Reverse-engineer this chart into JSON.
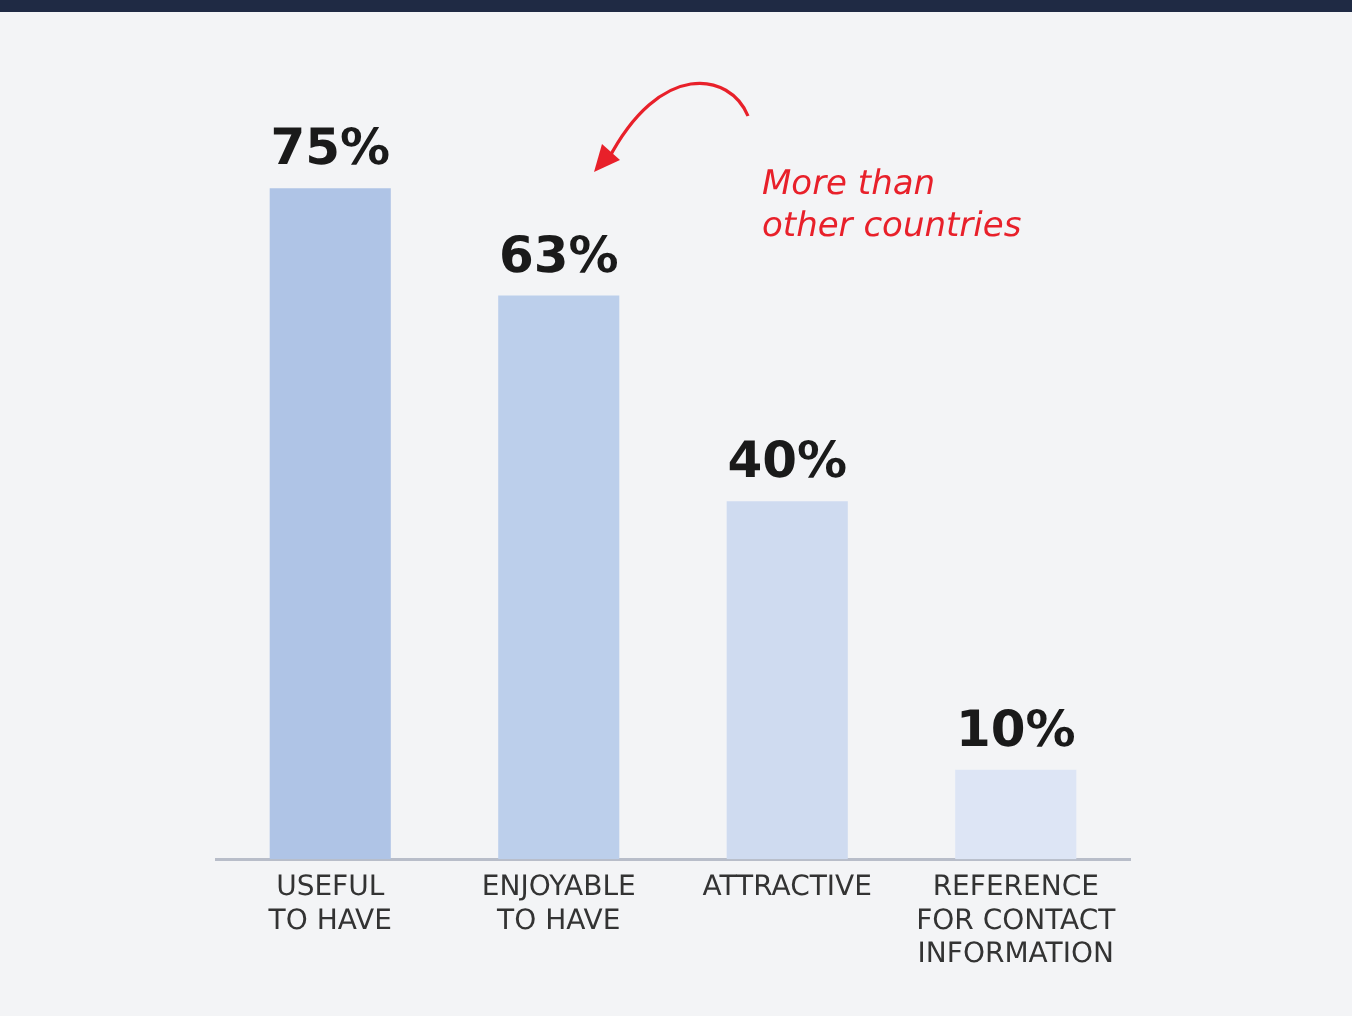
{
  "chart_data": {
    "type": "bar",
    "categories": [
      "USEFUL\nTO HAVE",
      "ENJOYABLE\nTO HAVE",
      "ATTRACTIVE",
      "REFERENCE\nFOR CONTACT\nINFORMATION"
    ],
    "values": [
      75,
      63,
      40,
      10
    ],
    "colors": [
      "#afc4e6",
      "#bccfeb",
      "#cfdbf0",
      "#dde5f5"
    ],
    "value_labels": [
      "75%",
      "63%",
      "40%",
      "10%"
    ],
    "annotations": [
      "More than\nother countries"
    ],
    "grid": false,
    "legend": false
  }
}
